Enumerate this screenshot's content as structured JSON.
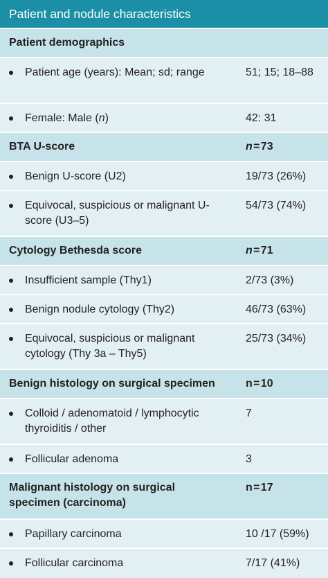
{
  "title": "Patient and nodule characteristics",
  "rows": [
    {
      "type": "header",
      "label": "Patient demographics",
      "value": ""
    },
    {
      "type": "item",
      "label": "Patient age (years): Mean; sd; range",
      "value": "51; 15; 18–88"
    },
    {
      "type": "item",
      "label_pre": "Female: Male (",
      "label_ital": "n",
      "label_post": ")",
      "value": "42: 31"
    },
    {
      "type": "header",
      "label": "BTA U-score",
      "value_n": "n",
      "value_rest": " = 73"
    },
    {
      "type": "item",
      "label": "Benign U-score (U2)",
      "value": "19/73 (26%)"
    },
    {
      "type": "item",
      "label": "Equivocal, suspicious or malignant U-score (U3–5)",
      "value": "54/73 (74%)"
    },
    {
      "type": "header",
      "label": "Cytology Bethesda score",
      "value_n": "n",
      "value_rest": " = 71"
    },
    {
      "type": "item",
      "label": "Insufficient sample (Thy1)",
      "value": "2/73 (3%)"
    },
    {
      "type": "item",
      "label": "Benign nodule cytology (Thy2)",
      "value": "46/73 (63%)"
    },
    {
      "type": "item",
      "label": "Equivocal, suspicious or malignant cytology (Thy 3a – Thy5)",
      "value": "25/73 (34%)"
    },
    {
      "type": "header",
      "label": "Benign histology on surgical specimen",
      "value": "n = 10"
    },
    {
      "type": "item",
      "label": "Colloid / adenomatoid / lymphocytic thyroiditis / other",
      "value": "7"
    },
    {
      "type": "item",
      "label": "Follicular adenoma",
      "value": "3"
    },
    {
      "type": "header",
      "label": "Malignant histology on surgical specimen (carcinoma)",
      "value": "n = 17"
    },
    {
      "type": "item",
      "label": "Papillary carcinoma",
      "value": "10 /17 (59%)"
    },
    {
      "type": "item",
      "label": "Follicular carcinoma",
      "value": "7/17 (41%)"
    }
  ]
}
